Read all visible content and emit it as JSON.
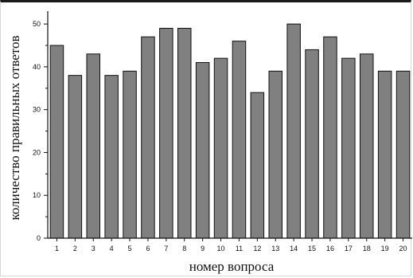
{
  "chart_data": {
    "type": "bar",
    "categories": [
      "1",
      "2",
      "3",
      "4",
      "5",
      "6",
      "7",
      "8",
      "9",
      "10",
      "11",
      "12",
      "13",
      "14",
      "15",
      "16",
      "17",
      "18",
      "19",
      "20"
    ],
    "values": [
      45,
      38,
      43,
      38,
      39,
      47,
      49,
      49,
      41,
      42,
      46,
      34,
      39,
      50,
      44,
      47,
      42,
      43,
      39,
      39
    ],
    "ylim": [
      0,
      53
    ],
    "yticks": [
      0,
      10,
      20,
      30,
      40,
      50
    ],
    "xlabel": "номер вопроса",
    "ylabel": "количество правильных ответов",
    "title": "",
    "grid": false,
    "colors": {
      "bar_fill": "#808080",
      "bar_stroke": "#111111"
    }
  }
}
